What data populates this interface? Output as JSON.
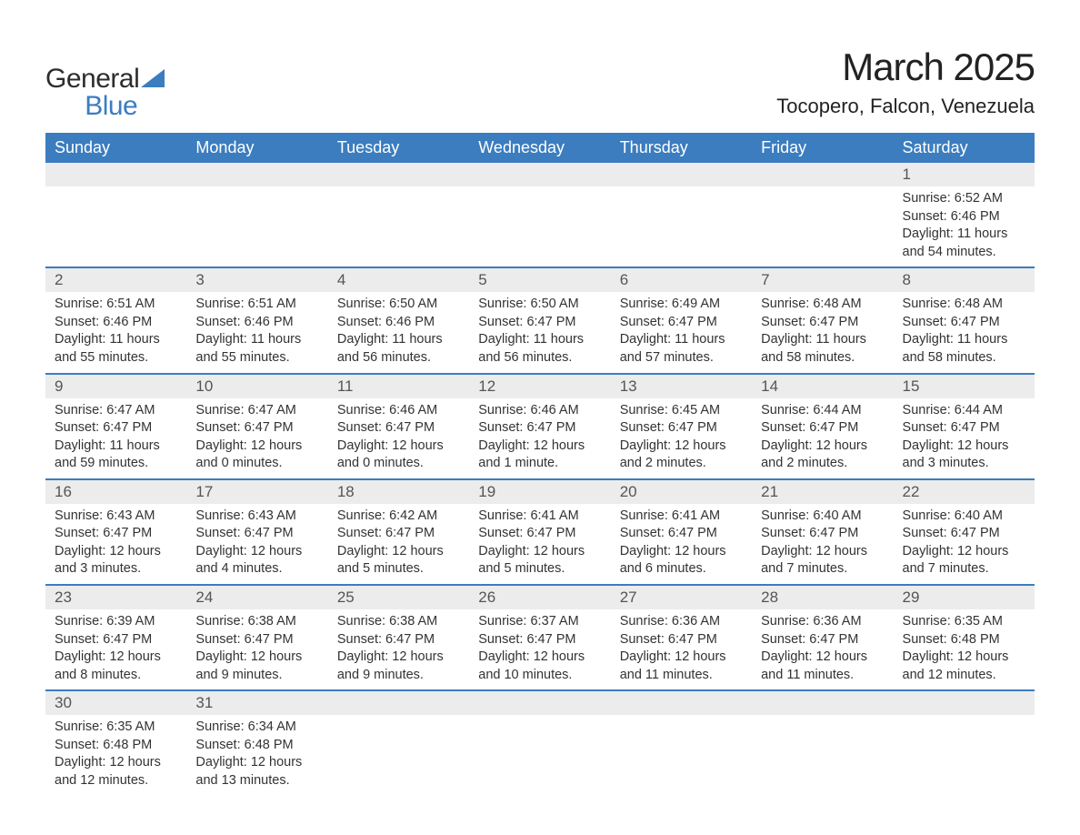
{
  "brand": {
    "line1": "General",
    "line2": "Blue"
  },
  "title": "March 2025",
  "location": "Tocopero, Falcon, Venezuela",
  "colors": {
    "header_bg": "#3b7dbf",
    "header_text": "#ffffff",
    "daynum_bg": "#ececec",
    "row_border": "#3b7dbf",
    "body_bg": "#ffffff",
    "text": "#333333",
    "brand_blue": "#3b7dbf"
  },
  "day_headers": [
    "Sunday",
    "Monday",
    "Tuesday",
    "Wednesday",
    "Thursday",
    "Friday",
    "Saturday"
  ],
  "weeks": [
    [
      null,
      null,
      null,
      null,
      null,
      null,
      {
        "n": "1",
        "sunrise": "Sunrise: 6:52 AM",
        "sunset": "Sunset: 6:46 PM",
        "d1": "Daylight: 11 hours",
        "d2": "and 54 minutes."
      }
    ],
    [
      {
        "n": "2",
        "sunrise": "Sunrise: 6:51 AM",
        "sunset": "Sunset: 6:46 PM",
        "d1": "Daylight: 11 hours",
        "d2": "and 55 minutes."
      },
      {
        "n": "3",
        "sunrise": "Sunrise: 6:51 AM",
        "sunset": "Sunset: 6:46 PM",
        "d1": "Daylight: 11 hours",
        "d2": "and 55 minutes."
      },
      {
        "n": "4",
        "sunrise": "Sunrise: 6:50 AM",
        "sunset": "Sunset: 6:46 PM",
        "d1": "Daylight: 11 hours",
        "d2": "and 56 minutes."
      },
      {
        "n": "5",
        "sunrise": "Sunrise: 6:50 AM",
        "sunset": "Sunset: 6:47 PM",
        "d1": "Daylight: 11 hours",
        "d2": "and 56 minutes."
      },
      {
        "n": "6",
        "sunrise": "Sunrise: 6:49 AM",
        "sunset": "Sunset: 6:47 PM",
        "d1": "Daylight: 11 hours",
        "d2": "and 57 minutes."
      },
      {
        "n": "7",
        "sunrise": "Sunrise: 6:48 AM",
        "sunset": "Sunset: 6:47 PM",
        "d1": "Daylight: 11 hours",
        "d2": "and 58 minutes."
      },
      {
        "n": "8",
        "sunrise": "Sunrise: 6:48 AM",
        "sunset": "Sunset: 6:47 PM",
        "d1": "Daylight: 11 hours",
        "d2": "and 58 minutes."
      }
    ],
    [
      {
        "n": "9",
        "sunrise": "Sunrise: 6:47 AM",
        "sunset": "Sunset: 6:47 PM",
        "d1": "Daylight: 11 hours",
        "d2": "and 59 minutes."
      },
      {
        "n": "10",
        "sunrise": "Sunrise: 6:47 AM",
        "sunset": "Sunset: 6:47 PM",
        "d1": "Daylight: 12 hours",
        "d2": "and 0 minutes."
      },
      {
        "n": "11",
        "sunrise": "Sunrise: 6:46 AM",
        "sunset": "Sunset: 6:47 PM",
        "d1": "Daylight: 12 hours",
        "d2": "and 0 minutes."
      },
      {
        "n": "12",
        "sunrise": "Sunrise: 6:46 AM",
        "sunset": "Sunset: 6:47 PM",
        "d1": "Daylight: 12 hours",
        "d2": "and 1 minute."
      },
      {
        "n": "13",
        "sunrise": "Sunrise: 6:45 AM",
        "sunset": "Sunset: 6:47 PM",
        "d1": "Daylight: 12 hours",
        "d2": "and 2 minutes."
      },
      {
        "n": "14",
        "sunrise": "Sunrise: 6:44 AM",
        "sunset": "Sunset: 6:47 PM",
        "d1": "Daylight: 12 hours",
        "d2": "and 2 minutes."
      },
      {
        "n": "15",
        "sunrise": "Sunrise: 6:44 AM",
        "sunset": "Sunset: 6:47 PM",
        "d1": "Daylight: 12 hours",
        "d2": "and 3 minutes."
      }
    ],
    [
      {
        "n": "16",
        "sunrise": "Sunrise: 6:43 AM",
        "sunset": "Sunset: 6:47 PM",
        "d1": "Daylight: 12 hours",
        "d2": "and 3 minutes."
      },
      {
        "n": "17",
        "sunrise": "Sunrise: 6:43 AM",
        "sunset": "Sunset: 6:47 PM",
        "d1": "Daylight: 12 hours",
        "d2": "and 4 minutes."
      },
      {
        "n": "18",
        "sunrise": "Sunrise: 6:42 AM",
        "sunset": "Sunset: 6:47 PM",
        "d1": "Daylight: 12 hours",
        "d2": "and 5 minutes."
      },
      {
        "n": "19",
        "sunrise": "Sunrise: 6:41 AM",
        "sunset": "Sunset: 6:47 PM",
        "d1": "Daylight: 12 hours",
        "d2": "and 5 minutes."
      },
      {
        "n": "20",
        "sunrise": "Sunrise: 6:41 AM",
        "sunset": "Sunset: 6:47 PM",
        "d1": "Daylight: 12 hours",
        "d2": "and 6 minutes."
      },
      {
        "n": "21",
        "sunrise": "Sunrise: 6:40 AM",
        "sunset": "Sunset: 6:47 PM",
        "d1": "Daylight: 12 hours",
        "d2": "and 7 minutes."
      },
      {
        "n": "22",
        "sunrise": "Sunrise: 6:40 AM",
        "sunset": "Sunset: 6:47 PM",
        "d1": "Daylight: 12 hours",
        "d2": "and 7 minutes."
      }
    ],
    [
      {
        "n": "23",
        "sunrise": "Sunrise: 6:39 AM",
        "sunset": "Sunset: 6:47 PM",
        "d1": "Daylight: 12 hours",
        "d2": "and 8 minutes."
      },
      {
        "n": "24",
        "sunrise": "Sunrise: 6:38 AM",
        "sunset": "Sunset: 6:47 PM",
        "d1": "Daylight: 12 hours",
        "d2": "and 9 minutes."
      },
      {
        "n": "25",
        "sunrise": "Sunrise: 6:38 AM",
        "sunset": "Sunset: 6:47 PM",
        "d1": "Daylight: 12 hours",
        "d2": "and 9 minutes."
      },
      {
        "n": "26",
        "sunrise": "Sunrise: 6:37 AM",
        "sunset": "Sunset: 6:47 PM",
        "d1": "Daylight: 12 hours",
        "d2": "and 10 minutes."
      },
      {
        "n": "27",
        "sunrise": "Sunrise: 6:36 AM",
        "sunset": "Sunset: 6:47 PM",
        "d1": "Daylight: 12 hours",
        "d2": "and 11 minutes."
      },
      {
        "n": "28",
        "sunrise": "Sunrise: 6:36 AM",
        "sunset": "Sunset: 6:47 PM",
        "d1": "Daylight: 12 hours",
        "d2": "and 11 minutes."
      },
      {
        "n": "29",
        "sunrise": "Sunrise: 6:35 AM",
        "sunset": "Sunset: 6:48 PM",
        "d1": "Daylight: 12 hours",
        "d2": "and 12 minutes."
      }
    ],
    [
      {
        "n": "30",
        "sunrise": "Sunrise: 6:35 AM",
        "sunset": "Sunset: 6:48 PM",
        "d1": "Daylight: 12 hours",
        "d2": "and 12 minutes."
      },
      {
        "n": "31",
        "sunrise": "Sunrise: 6:34 AM",
        "sunset": "Sunset: 6:48 PM",
        "d1": "Daylight: 12 hours",
        "d2": "and 13 minutes."
      },
      null,
      null,
      null,
      null,
      null
    ]
  ]
}
